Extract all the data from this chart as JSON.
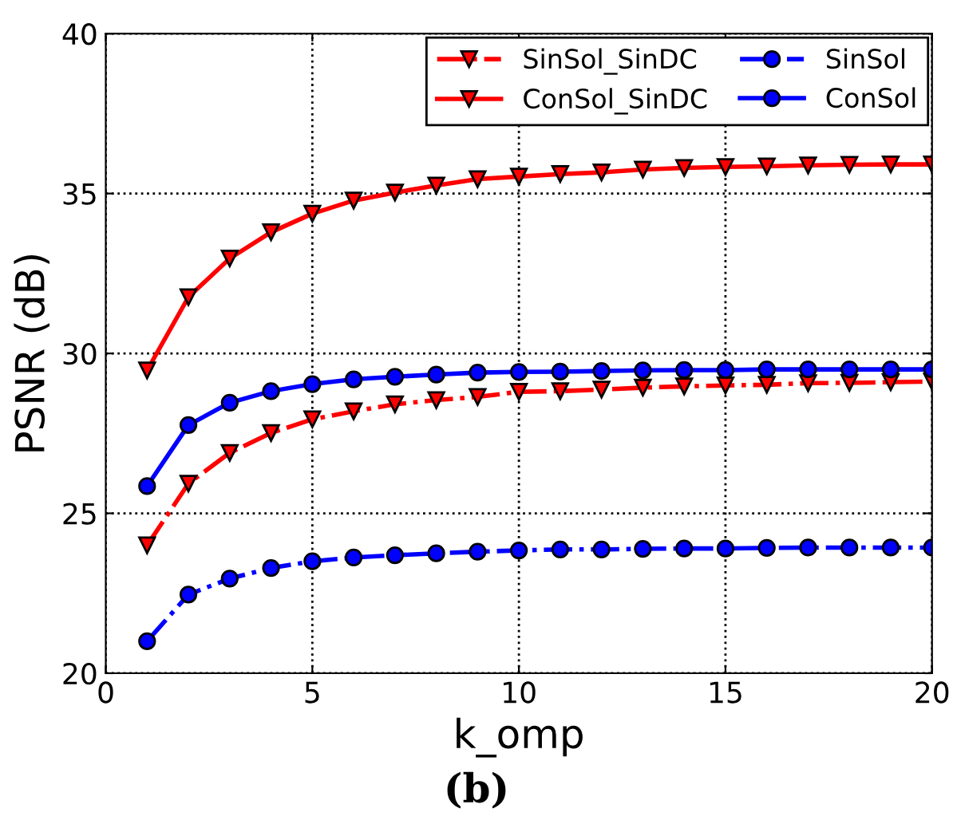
{
  "chart_data": {
    "type": "line",
    "xlabel": "k_omp",
    "ylabel": "PSNR (dB)",
    "annotations": [
      "(b)"
    ],
    "x": [
      1,
      2,
      3,
      4,
      5,
      6,
      7,
      8,
      9,
      10,
      11,
      12,
      13,
      14,
      15,
      16,
      17,
      18,
      19,
      20
    ],
    "xlim": [
      0,
      20
    ],
    "xticks": [
      0,
      5,
      10,
      15,
      20
    ],
    "ylim": [
      20,
      40
    ],
    "yticks": [
      20,
      25,
      30,
      35,
      40
    ],
    "grid": true,
    "legend": "top right",
    "series": [
      {
        "name": "SinSol_SinDC",
        "color": "#ff0000",
        "marker": "triangle",
        "line_style": "dashdot",
        "values": [
          24.0,
          25.93,
          26.89,
          27.51,
          27.94,
          28.19,
          28.41,
          28.54,
          28.64,
          28.8,
          28.82,
          28.87,
          28.93,
          28.97,
          29.0,
          29.02,
          29.07,
          29.08,
          29.1,
          29.12
        ]
      },
      {
        "name": "ConSol_SinDC",
        "color": "#ff0000",
        "marker": "triangle",
        "line_style": "solid",
        "values": [
          29.47,
          31.76,
          32.97,
          33.79,
          34.37,
          34.78,
          35.03,
          35.25,
          35.45,
          35.53,
          35.61,
          35.66,
          35.75,
          35.8,
          35.83,
          35.85,
          35.88,
          35.9,
          35.91,
          35.91
        ]
      },
      {
        "name": "SinSol",
        "color": "#0000ff",
        "marker": "circle",
        "line_style": "dashdot",
        "values": [
          21.0,
          22.46,
          22.96,
          23.29,
          23.5,
          23.62,
          23.69,
          23.75,
          23.8,
          23.84,
          23.87,
          23.87,
          23.89,
          23.9,
          23.9,
          23.92,
          23.93,
          23.93,
          23.93,
          23.93
        ]
      },
      {
        "name": "ConSol",
        "color": "#0000ff",
        "marker": "circle",
        "line_style": "solid",
        "values": [
          25.85,
          27.76,
          28.46,
          28.82,
          29.04,
          29.19,
          29.27,
          29.34,
          29.4,
          29.42,
          29.43,
          29.45,
          29.47,
          29.48,
          29.48,
          29.5,
          29.5,
          29.5,
          29.5,
          29.5
        ]
      }
    ]
  }
}
